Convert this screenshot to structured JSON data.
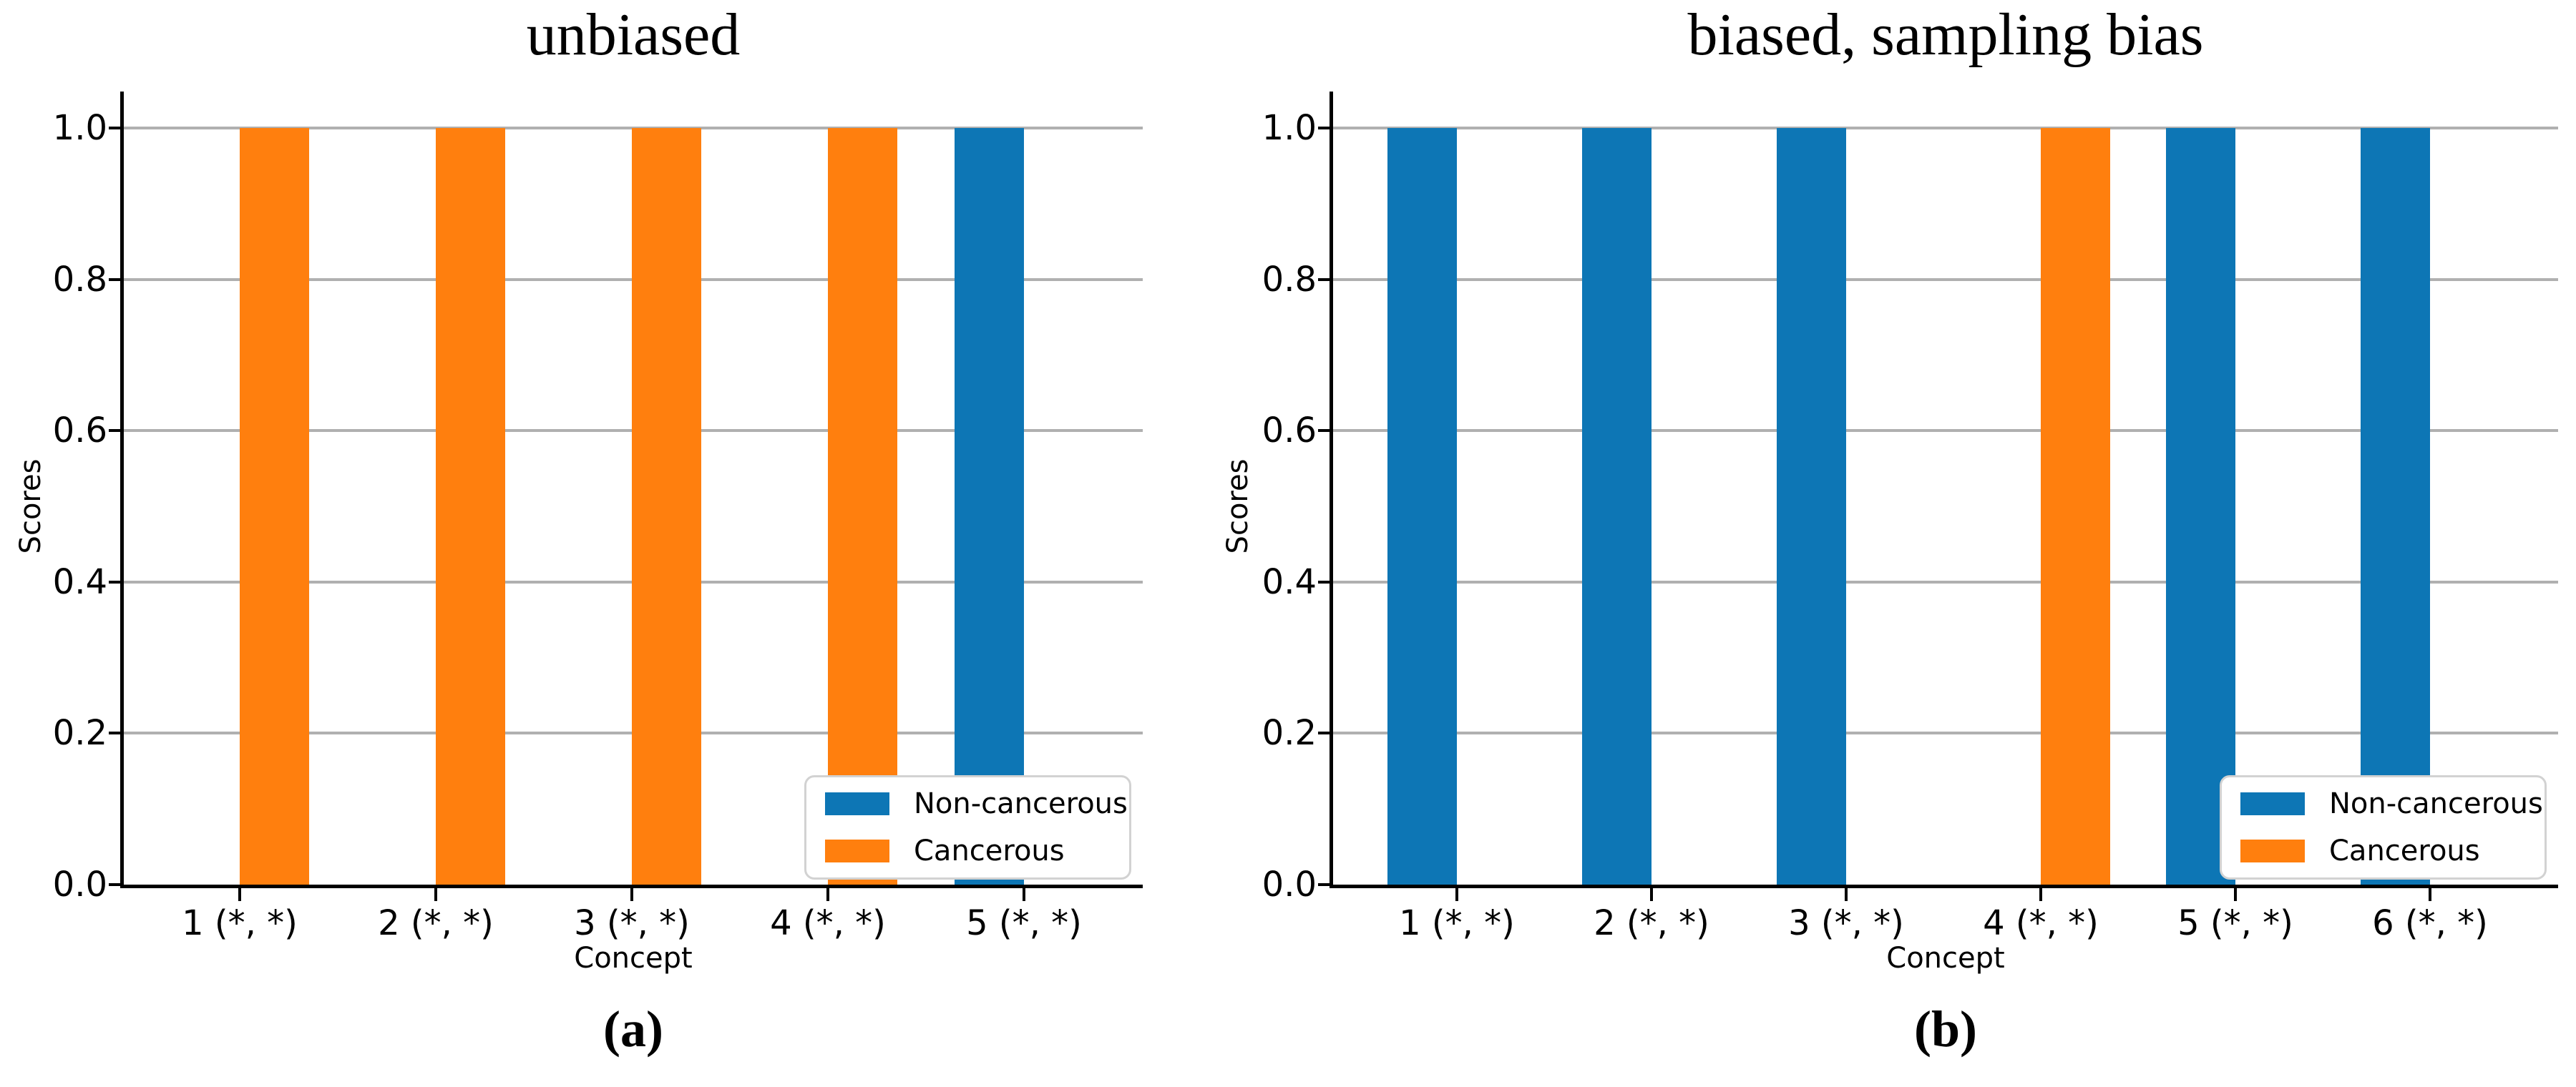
{
  "figure": {
    "background": "#ffffff"
  },
  "colors": {
    "non_cancerous": "#0d76b5",
    "cancerous": "#ff7f0e",
    "grid": "#b0b0b0",
    "spine": "#000000",
    "legend_border": "#d2d2d2"
  },
  "legend": {
    "items": [
      {
        "label": "Non-cancerous",
        "color_key": "non_cancerous"
      },
      {
        "label": "Cancerous",
        "color_key": "cancerous"
      }
    ]
  },
  "chart_data": [
    {
      "type": "bar",
      "title": "unbiased",
      "caption": "(a)",
      "xlabel": "Concept",
      "ylabel": "Scores",
      "ylim": [
        0.0,
        1.0
      ],
      "grid": true,
      "legend_position": "lower right",
      "ytick_values": [
        0.0,
        0.2,
        0.4,
        0.6,
        0.8,
        1.0
      ],
      "ytick_labels": [
        "0.0",
        "0.2",
        "0.4",
        "0.6",
        "0.8",
        "1.0"
      ],
      "categories": [
        "1 (*, *)",
        "2 (*, *)",
        "3 (*, *)",
        "4 (*, *)",
        "5 (*, *)"
      ],
      "series": [
        {
          "name": "Non-cancerous",
          "color_key": "non_cancerous",
          "values": [
            0,
            0,
            0,
            0,
            1.0
          ]
        },
        {
          "name": "Cancerous",
          "color_key": "cancerous",
          "values": [
            1.0,
            1.0,
            1.0,
            1.0,
            0
          ]
        }
      ]
    },
    {
      "type": "bar",
      "title": "biased, sampling bias",
      "caption": "(b)",
      "xlabel": "Concept",
      "ylabel": "Scores",
      "ylim": [
        0.0,
        1.0
      ],
      "grid": true,
      "legend_position": "lower right",
      "ytick_values": [
        0.0,
        0.2,
        0.4,
        0.6,
        0.8,
        1.0
      ],
      "ytick_labels": [
        "0.0",
        "0.2",
        "0.4",
        "0.6",
        "0.8",
        "1.0"
      ],
      "categories": [
        "1 (*, *)",
        "2 (*, *)",
        "3 (*, *)",
        "4 (*, *)",
        "5 (*, *)",
        "6 (*, *)"
      ],
      "series": [
        {
          "name": "Non-cancerous",
          "color_key": "non_cancerous",
          "values": [
            1.0,
            1.0,
            1.0,
            0,
            1.0,
            1.0
          ]
        },
        {
          "name": "Cancerous",
          "color_key": "cancerous",
          "values": [
            0,
            0,
            0,
            1.0,
            0,
            0
          ]
        }
      ]
    }
  ]
}
